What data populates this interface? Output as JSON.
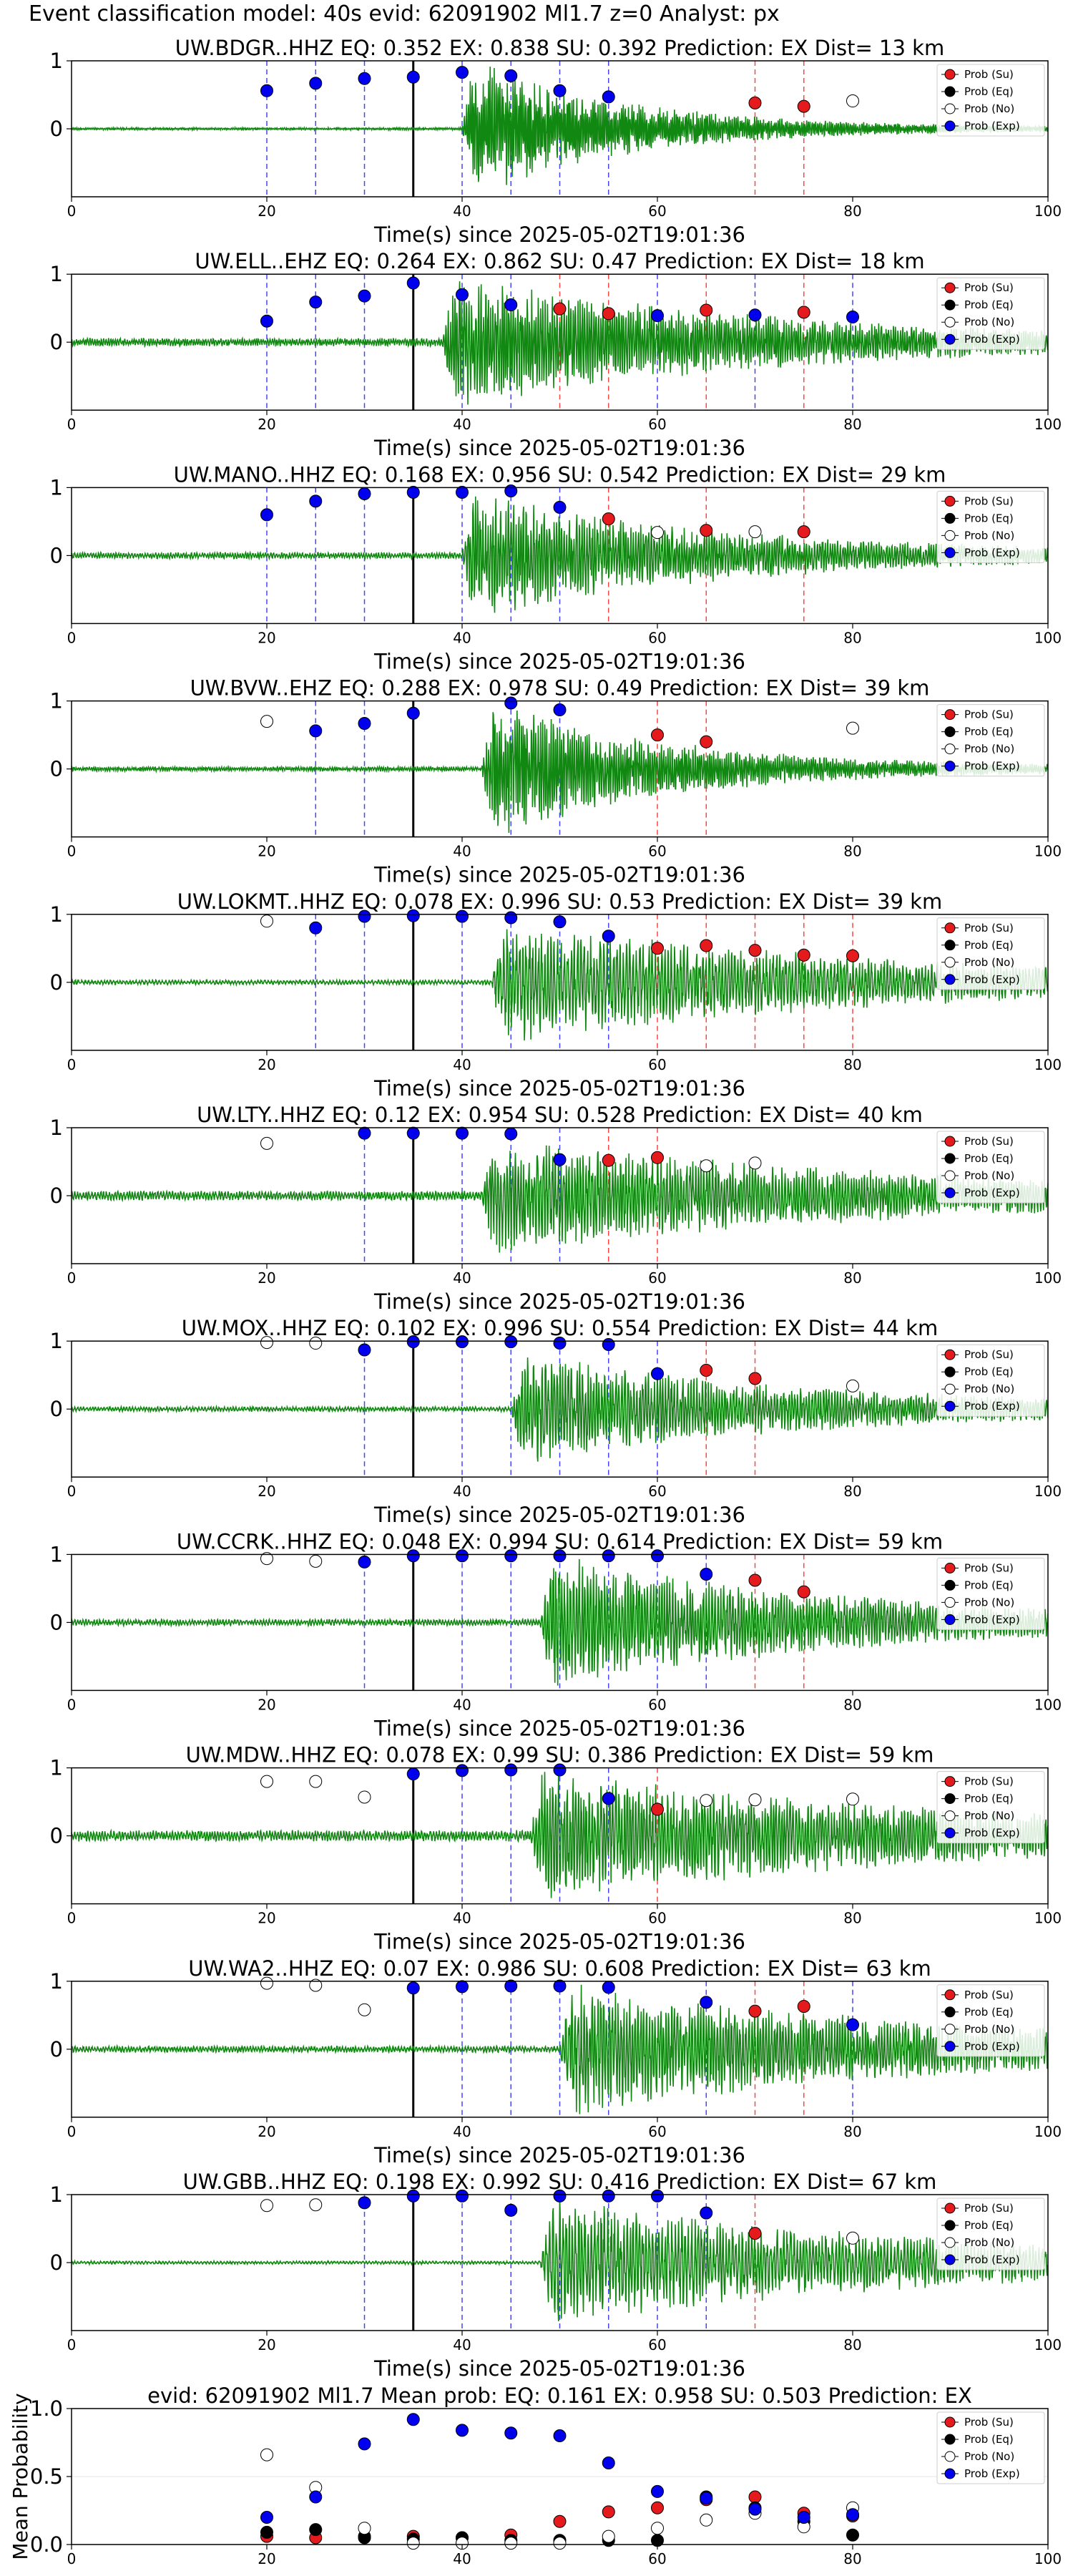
{
  "suptitle": "Event classification model: 40s evid: 62091902 Ml1.7 z=0 Analyst: px",
  "legend": [
    "Prob (Su)",
    "Prob (Eq)",
    "Prob (No)",
    "Prob (Exp)"
  ],
  "colors": {
    "su": "#e41a1c",
    "eq": "#000000",
    "no": "#ffffff",
    "exp": "#0000ee",
    "trace": "#118811",
    "vline_exp": "#4444ff",
    "vline_su": "#ff4444",
    "event_line": "#000000"
  },
  "chart_data": [
    {
      "type": "line",
      "title": "UW.BDGR..HHZ   EQ: 0.352  EX: 0.838  SU: 0.392   Prediction: EX    Dist= 13 km",
      "xlabel": "Time(s) since 2025-05-02T19:01:36",
      "xlim": [
        0,
        100
      ],
      "ylim": [
        -1,
        1
      ],
      "xticks": [
        0,
        20,
        40,
        60,
        80,
        100
      ],
      "yticks": [
        0,
        1
      ],
      "event_time": 35,
      "onset": 40,
      "dur": 16,
      "noise": 0.015,
      "sig_amp": 0.9,
      "freq": 1.4,
      "points": [
        {
          "x": 20,
          "y": 0.56,
          "c": "exp"
        },
        {
          "x": 25,
          "y": 0.67,
          "c": "exp"
        },
        {
          "x": 30,
          "y": 0.74,
          "c": "exp"
        },
        {
          "x": 35,
          "y": 0.76,
          "c": "exp"
        },
        {
          "x": 40,
          "y": 0.83,
          "c": "exp"
        },
        {
          "x": 45,
          "y": 0.78,
          "c": "exp"
        },
        {
          "x": 50,
          "y": 0.56,
          "c": "exp"
        },
        {
          "x": 55,
          "y": 0.47,
          "c": "exp"
        },
        {
          "x": 70,
          "y": 0.38,
          "c": "su"
        },
        {
          "x": 75,
          "y": 0.33,
          "c": "su"
        },
        {
          "x": 80,
          "y": 0.41,
          "c": "no"
        }
      ]
    },
    {
      "type": "line",
      "title": "UW.ELL..EHZ   EQ: 0.264  EX: 0.862  SU: 0.47   Prediction: EX    Dist= 18 km",
      "xlabel": "Time(s) since 2025-05-02T19:01:36",
      "xlim": [
        0,
        100
      ],
      "ylim": [
        -1,
        1
      ],
      "xticks": [
        0,
        20,
        40,
        60,
        80,
        100
      ],
      "yticks": [
        0,
        1
      ],
      "event_time": 35,
      "onset": 38,
      "dur": 30,
      "noise": 0.05,
      "sig_amp": 0.85,
      "freq": 1.1,
      "points": [
        {
          "x": 20,
          "y": 0.31,
          "c": "exp"
        },
        {
          "x": 25,
          "y": 0.59,
          "c": "exp"
        },
        {
          "x": 30,
          "y": 0.68,
          "c": "exp"
        },
        {
          "x": 35,
          "y": 0.87,
          "c": "exp"
        },
        {
          "x": 40,
          "y": 0.7,
          "c": "exp"
        },
        {
          "x": 45,
          "y": 0.55,
          "c": "exp"
        },
        {
          "x": 50,
          "y": 0.49,
          "c": "su"
        },
        {
          "x": 55,
          "y": 0.42,
          "c": "su"
        },
        {
          "x": 60,
          "y": 0.39,
          "c": "exp"
        },
        {
          "x": 65,
          "y": 0.47,
          "c": "su"
        },
        {
          "x": 70,
          "y": 0.4,
          "c": "exp"
        },
        {
          "x": 75,
          "y": 0.44,
          "c": "su"
        },
        {
          "x": 80,
          "y": 0.37,
          "c": "exp"
        }
      ]
    },
    {
      "type": "line",
      "title": "UW.MANO..HHZ   EQ: 0.168  EX: 0.956  SU: 0.542   Prediction: EX    Dist= 29 km",
      "xlabel": "Time(s) since 2025-05-02T19:01:36",
      "xlim": [
        0,
        100
      ],
      "ylim": [
        -1,
        1
      ],
      "xticks": [
        0,
        20,
        40,
        60,
        80,
        100
      ],
      "yticks": [
        0,
        1
      ],
      "event_time": 35,
      "onset": 40,
      "dur": 25,
      "noise": 0.04,
      "sig_amp": 0.8,
      "freq": 1.0,
      "points": [
        {
          "x": 20,
          "y": 0.6,
          "c": "exp"
        },
        {
          "x": 25,
          "y": 0.8,
          "c": "exp"
        },
        {
          "x": 30,
          "y": 0.91,
          "c": "exp"
        },
        {
          "x": 35,
          "y": 0.93,
          "c": "exp"
        },
        {
          "x": 40,
          "y": 0.93,
          "c": "exp"
        },
        {
          "x": 45,
          "y": 0.95,
          "c": "exp"
        },
        {
          "x": 50,
          "y": 0.71,
          "c": "exp"
        },
        {
          "x": 55,
          "y": 0.54,
          "c": "su"
        },
        {
          "x": 60,
          "y": 0.34,
          "c": "no"
        },
        {
          "x": 65,
          "y": 0.37,
          "c": "su"
        },
        {
          "x": 70,
          "y": 0.35,
          "c": "no"
        },
        {
          "x": 75,
          "y": 0.35,
          "c": "su"
        }
      ]
    },
    {
      "type": "line",
      "title": "UW.BVW..EHZ   EQ: 0.288  EX: 0.978  SU: 0.49   Prediction: EX    Dist= 39 km",
      "xlabel": "Time(s) since 2025-05-02T19:01:36",
      "xlim": [
        0,
        100
      ],
      "ylim": [
        -1,
        1
      ],
      "xticks": [
        0,
        20,
        40,
        60,
        80,
        100
      ],
      "yticks": [
        0,
        1
      ],
      "event_time": 35,
      "onset": 42,
      "dur": 18,
      "noise": 0.03,
      "sig_amp": 0.9,
      "freq": 1.2,
      "points": [
        {
          "x": 20,
          "y": 0.7,
          "c": "no"
        },
        {
          "x": 25,
          "y": 0.56,
          "c": "exp"
        },
        {
          "x": 30,
          "y": 0.67,
          "c": "exp"
        },
        {
          "x": 35,
          "y": 0.82,
          "c": "exp"
        },
        {
          "x": 45,
          "y": 0.97,
          "c": "exp"
        },
        {
          "x": 50,
          "y": 0.87,
          "c": "exp"
        },
        {
          "x": 60,
          "y": 0.5,
          "c": "su"
        },
        {
          "x": 65,
          "y": 0.4,
          "c": "su"
        },
        {
          "x": 80,
          "y": 0.6,
          "c": "no"
        }
      ]
    },
    {
      "type": "line",
      "title": "UW.LOKMT..HHZ   EQ: 0.078  EX: 0.996  SU: 0.53   Prediction: EX    Dist= 39 km",
      "xlabel": "Time(s) since 2025-05-02T19:01:36",
      "xlim": [
        0,
        100
      ],
      "ylim": [
        -1,
        1
      ],
      "xticks": [
        0,
        20,
        40,
        60,
        80,
        100
      ],
      "yticks": [
        0,
        1
      ],
      "event_time": 35,
      "onset": 43,
      "dur": 40,
      "noise": 0.03,
      "sig_amp": 0.75,
      "freq": 0.8,
      "points": [
        {
          "x": 20,
          "y": 0.9,
          "c": "no"
        },
        {
          "x": 25,
          "y": 0.8,
          "c": "exp"
        },
        {
          "x": 30,
          "y": 0.97,
          "c": "exp"
        },
        {
          "x": 35,
          "y": 0.98,
          "c": "exp"
        },
        {
          "x": 40,
          "y": 0.97,
          "c": "exp"
        },
        {
          "x": 45,
          "y": 0.95,
          "c": "exp"
        },
        {
          "x": 50,
          "y": 0.89,
          "c": "exp"
        },
        {
          "x": 55,
          "y": 0.68,
          "c": "exp"
        },
        {
          "x": 60,
          "y": 0.5,
          "c": "su"
        },
        {
          "x": 65,
          "y": 0.54,
          "c": "su"
        },
        {
          "x": 70,
          "y": 0.47,
          "c": "su"
        },
        {
          "x": 75,
          "y": 0.4,
          "c": "su"
        },
        {
          "x": 80,
          "y": 0.39,
          "c": "su"
        }
      ]
    },
    {
      "type": "line",
      "title": "UW.LTY..HHZ   EQ: 0.12  EX: 0.954  SU: 0.528   Prediction: EX    Dist= 40 km",
      "xlabel": "Time(s) since 2025-05-02T19:01:36",
      "xlim": [
        0,
        100
      ],
      "ylim": [
        -1,
        1
      ],
      "xticks": [
        0,
        20,
        40,
        60,
        80,
        100
      ],
      "yticks": [
        0,
        1
      ],
      "event_time": 35,
      "onset": 42,
      "dur": 40,
      "noise": 0.06,
      "sig_amp": 0.7,
      "freq": 0.9,
      "points": [
        {
          "x": 20,
          "y": 0.77,
          "c": "no"
        },
        {
          "x": 30,
          "y": 0.92,
          "c": "exp"
        },
        {
          "x": 35,
          "y": 0.92,
          "c": "exp"
        },
        {
          "x": 40,
          "y": 0.92,
          "c": "exp"
        },
        {
          "x": 45,
          "y": 0.91,
          "c": "exp"
        },
        {
          "x": 50,
          "y": 0.53,
          "c": "exp"
        },
        {
          "x": 55,
          "y": 0.52,
          "c": "su"
        },
        {
          "x": 60,
          "y": 0.56,
          "c": "su"
        },
        {
          "x": 65,
          "y": 0.44,
          "c": "no"
        },
        {
          "x": 70,
          "y": 0.48,
          "c": "no"
        }
      ]
    },
    {
      "type": "line",
      "title": "UW.MOX..HHZ   EQ: 0.102  EX: 0.996  SU: 0.554   Prediction: EX    Dist= 44 km",
      "xlabel": "Time(s) since 2025-05-02T19:01:36",
      "xlim": [
        0,
        100
      ],
      "ylim": [
        -1,
        1
      ],
      "xticks": [
        0,
        20,
        40,
        60,
        80,
        100
      ],
      "yticks": [
        0,
        1
      ],
      "event_time": 35,
      "onset": 45,
      "dur": 30,
      "noise": 0.03,
      "sig_amp": 0.7,
      "freq": 0.9,
      "points": [
        {
          "x": 20,
          "y": 0.98,
          "c": "no"
        },
        {
          "x": 25,
          "y": 0.97,
          "c": "no"
        },
        {
          "x": 30,
          "y": 0.87,
          "c": "exp"
        },
        {
          "x": 35,
          "y": 0.99,
          "c": "exp"
        },
        {
          "x": 40,
          "y": 0.99,
          "c": "exp"
        },
        {
          "x": 45,
          "y": 0.99,
          "c": "exp"
        },
        {
          "x": 50,
          "y": 0.97,
          "c": "exp"
        },
        {
          "x": 55,
          "y": 0.95,
          "c": "exp"
        },
        {
          "x": 60,
          "y": 0.52,
          "c": "exp"
        },
        {
          "x": 65,
          "y": 0.57,
          "c": "su"
        },
        {
          "x": 70,
          "y": 0.45,
          "c": "su"
        },
        {
          "x": 80,
          "y": 0.34,
          "c": "no"
        }
      ]
    },
    {
      "type": "line",
      "title": "UW.CCRK..HHZ   EQ: 0.048  EX: 0.994  SU: 0.614   Prediction: EX    Dist= 59 km",
      "xlabel": "Time(s) since 2025-05-02T19:01:36",
      "xlim": [
        0,
        100
      ],
      "ylim": [
        -1,
        1
      ],
      "xticks": [
        0,
        20,
        40,
        60,
        80,
        100
      ],
      "yticks": [
        0,
        1
      ],
      "event_time": 35,
      "onset": 48,
      "dur": 30,
      "noise": 0.04,
      "sig_amp": 0.85,
      "freq": 0.9,
      "points": [
        {
          "x": 20,
          "y": 0.94,
          "c": "no"
        },
        {
          "x": 25,
          "y": 0.9,
          "c": "no"
        },
        {
          "x": 30,
          "y": 0.89,
          "c": "exp"
        },
        {
          "x": 35,
          "y": 0.98,
          "c": "exp"
        },
        {
          "x": 40,
          "y": 0.98,
          "c": "exp"
        },
        {
          "x": 45,
          "y": 0.98,
          "c": "exp"
        },
        {
          "x": 50,
          "y": 0.98,
          "c": "exp"
        },
        {
          "x": 55,
          "y": 0.98,
          "c": "exp"
        },
        {
          "x": 60,
          "y": 0.98,
          "c": "exp"
        },
        {
          "x": 65,
          "y": 0.71,
          "c": "exp"
        },
        {
          "x": 70,
          "y": 0.62,
          "c": "su"
        },
        {
          "x": 75,
          "y": 0.45,
          "c": "su"
        }
      ]
    },
    {
      "type": "line",
      "title": "UW.MDW..HHZ   EQ: 0.078  EX: 0.99  SU: 0.386   Prediction: EX    Dist= 59 km",
      "xlabel": "Time(s) since 2025-05-02T19:01:36",
      "xlim": [
        0,
        100
      ],
      "ylim": [
        -1,
        1
      ],
      "xticks": [
        0,
        20,
        40,
        60,
        80,
        100
      ],
      "yticks": [
        0,
        1
      ],
      "event_time": 35,
      "onset": 47,
      "dur": 40,
      "noise": 0.07,
      "sig_amp": 0.8,
      "freq": 0.9,
      "points": [
        {
          "x": 20,
          "y": 0.8,
          "c": "no"
        },
        {
          "x": 25,
          "y": 0.8,
          "c": "no"
        },
        {
          "x": 30,
          "y": 0.57,
          "c": "no"
        },
        {
          "x": 35,
          "y": 0.91,
          "c": "exp"
        },
        {
          "x": 40,
          "y": 0.96,
          "c": "exp"
        },
        {
          "x": 45,
          "y": 0.97,
          "c": "exp"
        },
        {
          "x": 50,
          "y": 0.97,
          "c": "exp"
        },
        {
          "x": 55,
          "y": 0.55,
          "c": "exp"
        },
        {
          "x": 60,
          "y": 0.39,
          "c": "su"
        },
        {
          "x": 65,
          "y": 0.52,
          "c": "no"
        },
        {
          "x": 70,
          "y": 0.53,
          "c": "no"
        },
        {
          "x": 80,
          "y": 0.54,
          "c": "no"
        }
      ]
    },
    {
      "type": "line",
      "title": "UW.WA2..HHZ   EQ: 0.07  EX: 0.986  SU: 0.608   Prediction: EX    Dist= 63 km",
      "xlabel": "Time(s) since 2025-05-02T19:01:36",
      "xlim": [
        0,
        100
      ],
      "ylim": [
        -1,
        1
      ],
      "xticks": [
        0,
        20,
        40,
        60,
        80,
        100
      ],
      "yticks": [
        0,
        1
      ],
      "event_time": 35,
      "onset": 50,
      "dur": 40,
      "noise": 0.04,
      "sig_amp": 0.8,
      "freq": 0.9,
      "points": [
        {
          "x": 20,
          "y": 0.97,
          "c": "no"
        },
        {
          "x": 25,
          "y": 0.94,
          "c": "no"
        },
        {
          "x": 30,
          "y": 0.58,
          "c": "no"
        },
        {
          "x": 35,
          "y": 0.9,
          "c": "exp"
        },
        {
          "x": 40,
          "y": 0.92,
          "c": "exp"
        },
        {
          "x": 45,
          "y": 0.93,
          "c": "exp"
        },
        {
          "x": 50,
          "y": 0.93,
          "c": "exp"
        },
        {
          "x": 55,
          "y": 0.91,
          "c": "exp"
        },
        {
          "x": 65,
          "y": 0.69,
          "c": "exp"
        },
        {
          "x": 70,
          "y": 0.56,
          "c": "su"
        },
        {
          "x": 75,
          "y": 0.63,
          "c": "su"
        },
        {
          "x": 80,
          "y": 0.36,
          "c": "exp"
        }
      ]
    },
    {
      "type": "line",
      "title": "UW.GBB..HHZ   EQ: 0.198  EX: 0.992  SU: 0.416   Prediction: EX    Dist= 67 km",
      "xlabel": "Time(s) since 2025-05-02T19:01:36",
      "xlim": [
        0,
        100
      ],
      "ylim": [
        -1,
        1
      ],
      "xticks": [
        0,
        20,
        40,
        60,
        80,
        100
      ],
      "yticks": [
        0,
        1
      ],
      "event_time": 35,
      "onset": 48,
      "dur": 40,
      "noise": 0.02,
      "sig_amp": 0.8,
      "freq": 0.8,
      "points": [
        {
          "x": 20,
          "y": 0.84,
          "c": "no"
        },
        {
          "x": 25,
          "y": 0.85,
          "c": "no"
        },
        {
          "x": 30,
          "y": 0.88,
          "c": "exp"
        },
        {
          "x": 35,
          "y": 0.98,
          "c": "exp"
        },
        {
          "x": 40,
          "y": 0.98,
          "c": "exp"
        },
        {
          "x": 45,
          "y": 0.77,
          "c": "exp"
        },
        {
          "x": 50,
          "y": 0.98,
          "c": "exp"
        },
        {
          "x": 55,
          "y": 0.98,
          "c": "exp"
        },
        {
          "x": 60,
          "y": 0.98,
          "c": "exp"
        },
        {
          "x": 65,
          "y": 0.73,
          "c": "exp"
        },
        {
          "x": 70,
          "y": 0.43,
          "c": "su"
        },
        {
          "x": 80,
          "y": 0.36,
          "c": "no"
        }
      ]
    },
    {
      "type": "scatter",
      "title": "evid: 62091902  Ml1.7   Mean prob:   EQ: 0.161  EX: 0.958  SU: 0.503   Prediction: EX",
      "xlabel": "",
      "ylabel": "Mean Probability",
      "xlim": [
        0,
        100
      ],
      "ylim": [
        0,
        1
      ],
      "xticks": [
        0,
        20,
        40,
        60,
        80,
        100
      ],
      "yticks": [
        0.0,
        0.5,
        1.0
      ],
      "series": [
        {
          "name": "Prob (Su)",
          "c": "su",
          "x": [
            20,
            25,
            30,
            35,
            40,
            45,
            50,
            55,
            60,
            65,
            70,
            75,
            80
          ],
          "values": [
            0.06,
            0.05,
            0.06,
            0.06,
            0.05,
            0.07,
            0.17,
            0.24,
            0.27,
            0.33,
            0.35,
            0.23,
            0.21
          ]
        },
        {
          "name": "Prob (Eq)",
          "c": "eq",
          "x": [
            20,
            25,
            30,
            35,
            40,
            45,
            50,
            55,
            60,
            65,
            70,
            75,
            80
          ],
          "values": [
            0.09,
            0.11,
            0.05,
            0.04,
            0.05,
            0.03,
            0.03,
            0.03,
            0.03,
            0.35,
            0.27,
            0.17,
            0.07
          ]
        },
        {
          "name": "Prob (No)",
          "c": "no",
          "x": [
            20,
            25,
            30,
            35,
            40,
            45,
            50,
            55,
            60,
            65,
            70,
            75,
            80
          ],
          "values": [
            0.66,
            0.42,
            0.12,
            0.01,
            0.01,
            0.01,
            0.01,
            0.06,
            0.12,
            0.18,
            0.23,
            0.13,
            0.27
          ]
        },
        {
          "name": "Prob (Exp)",
          "c": "exp",
          "x": [
            20,
            25,
            30,
            35,
            40,
            45,
            50,
            55,
            60,
            65,
            70,
            75,
            80
          ],
          "values": [
            0.2,
            0.35,
            0.74,
            0.92,
            0.84,
            0.82,
            0.8,
            0.6,
            0.39,
            0.34,
            0.26,
            0.2,
            0.22
          ]
        }
      ]
    }
  ]
}
